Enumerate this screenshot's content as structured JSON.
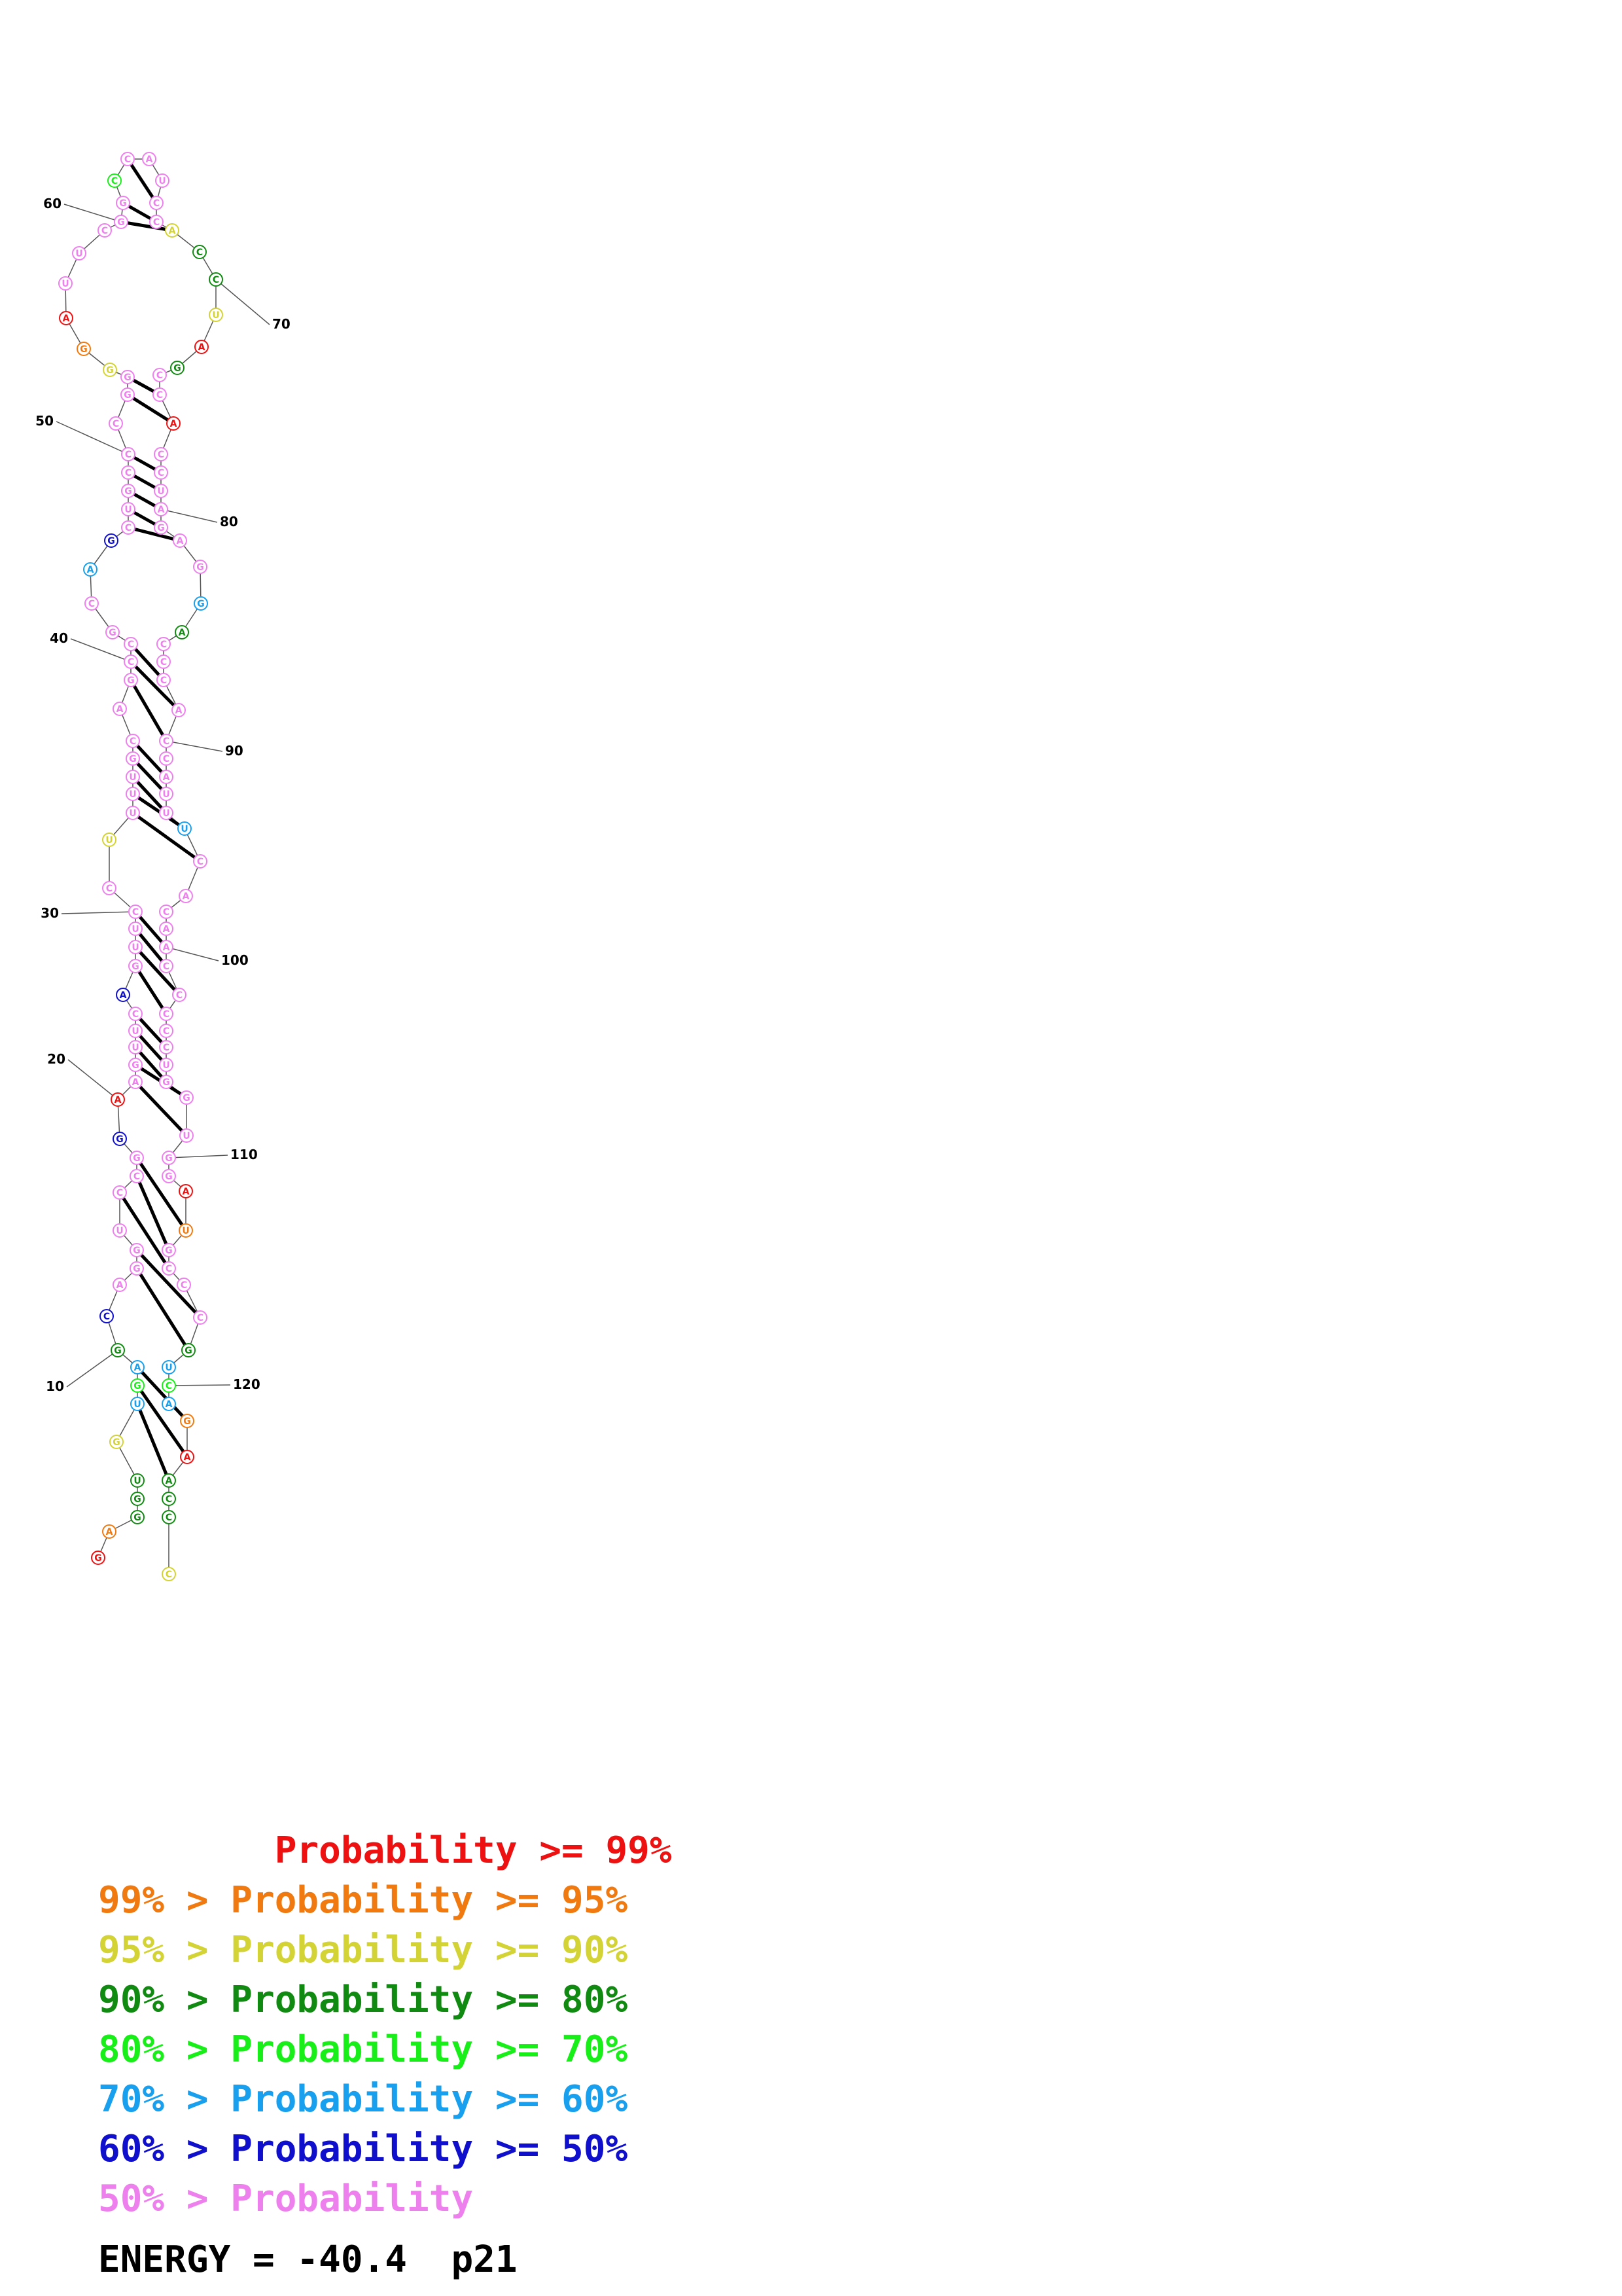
{
  "structure": {
    "sequence": "GAGUGGUCAGUGCUCCUGGAUCUGUUCUCCUGGAUCCCUGCAGGGAUCCUUCCGCUCGAUGGUGGCCCGAGAGUGCGGAUCAGGCCAGAGCCAGGGCCAGCGAGGAAAGGCCCUCCAGCCCCCGGCCACUGC",
    "pairs_visible": 42,
    "residue_labels": [
      "10",
      "20",
      "30",
      "40",
      "50",
      "60",
      "70",
      "80",
      "90",
      "100",
      "110",
      "120"
    ]
  },
  "legend": {
    "lines": [
      {
        "text": "        Probability >= 99%",
        "color": "#ee1111"
      },
      {
        "text": "99% > Probability >= 95%",
        "color": "#f07a10"
      },
      {
        "text": "95% > Probability >= 90%",
        "color": "#d3d335"
      },
      {
        "text": "90% > Probability >= 80%",
        "color": "#108a10"
      },
      {
        "text": "80% > Probability >= 70%",
        "color": "#18ee18"
      },
      {
        "text": "70% > Probability >= 60%",
        "color": "#18a0ee"
      },
      {
        "text": "60% > Probability >= 50%",
        "color": "#1010cc"
      },
      {
        "text": "50% > Probability",
        "color": "#ee80ee"
      }
    ]
  },
  "energy_label": "ENERGY = -40.4  p21",
  "colors": {
    "p99": "#ee1111",
    "p95": "#f07a10",
    "p90": "#d3d335",
    "p80": "#108a10",
    "p70": "#18ee18",
    "p60": "#18a0ee",
    "p50": "#1010cc",
    "low": "#ee80ee"
  }
}
